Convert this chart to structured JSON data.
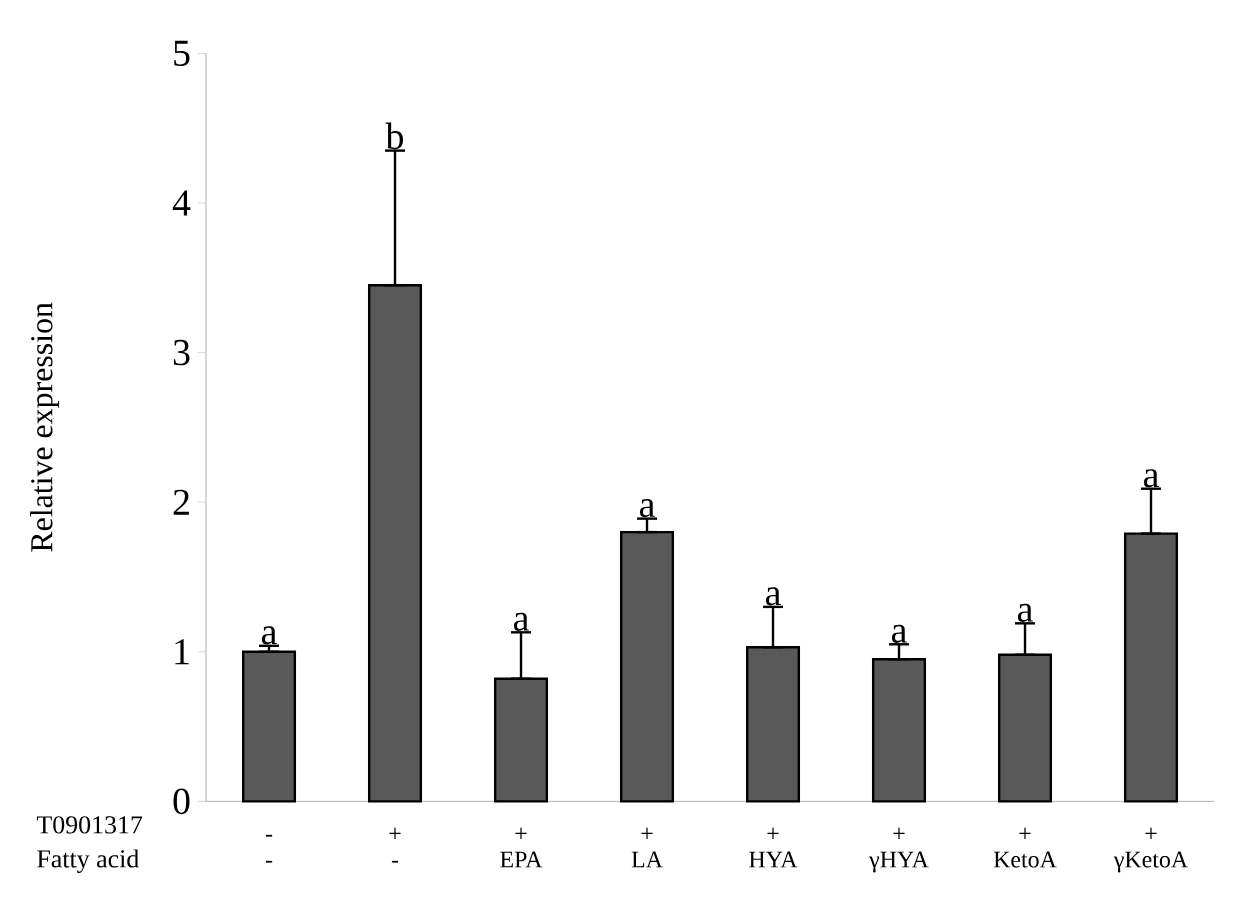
{
  "chart_data": {
    "type": "bar",
    "ylabel": "Relative expression",
    "categories": [
      "-",
      "+",
      "+",
      "+",
      "+",
      "+",
      "+",
      "+"
    ],
    "values": [
      1.0,
      3.45,
      0.82,
      1.8,
      1.03,
      0.95,
      0.98,
      1.79
    ],
    "errors": [
      [
        1.0,
        1.04
      ],
      [
        3.45,
        4.35
      ],
      [
        0.82,
        1.13
      ],
      [
        1.8,
        1.89
      ],
      [
        1.03,
        1.3
      ],
      [
        0.95,
        1.05
      ],
      [
        0.98,
        1.19
      ],
      [
        1.79,
        2.09
      ]
    ],
    "annotations": [
      "T0901317",
      "Fatty acid",
      "-",
      "-",
      "EPA",
      "LA",
      "HYA",
      "γHYA",
      "KetoA",
      "γKetoA",
      "a",
      "b",
      "a",
      "a",
      "a",
      "a",
      "a",
      "a"
    ],
    "color": "#595959",
    "ylim": [
      0,
      5
    ],
    "yticks": [
      0,
      1,
      2,
      3,
      4,
      5
    ]
  }
}
